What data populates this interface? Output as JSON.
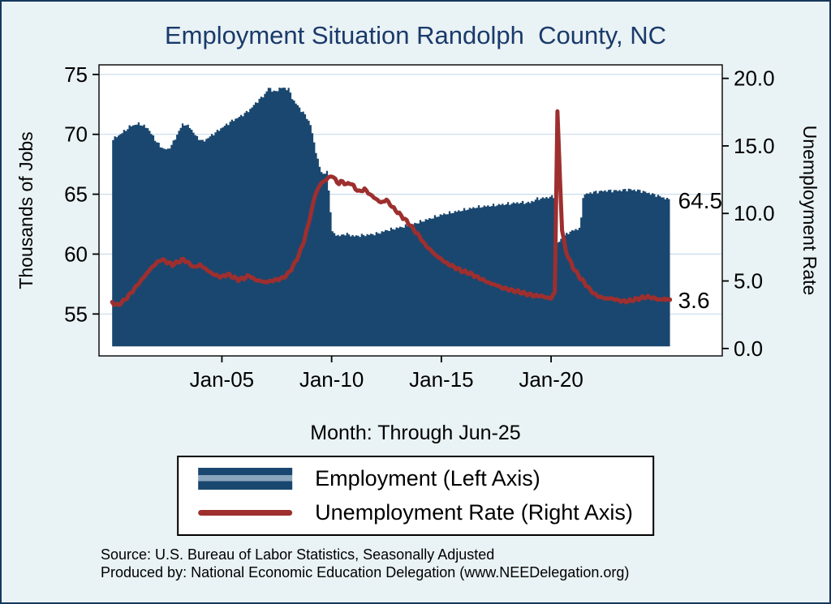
{
  "page": {
    "background_color": "#e9f2f4",
    "border_color": "#16365c",
    "title_color": "#1a3a6b"
  },
  "footnotes": {
    "source": "Source: U.S. Bureau of Labor Statistics, Seasonally Adjusted",
    "produced": "Produced by: National Economic Education Delegation (www.NEEDelegation.org)"
  },
  "chart_data": {
    "type": "area+line",
    "title": "Employment Situation Randolph  County, NC",
    "x_label": "Month: Through Jun-25",
    "x_domain": [
      1999.4,
      2027.8
    ],
    "x_ticks": [
      {
        "label": "Jan-05",
        "year": 2005
      },
      {
        "label": "Jan-10",
        "year": 2010
      },
      {
        "label": "Jan-15",
        "year": 2015
      },
      {
        "label": "Jan-20",
        "year": 2020
      }
    ],
    "left_axis": {
      "label": "Thousands of Jobs",
      "range": [
        51.5,
        75.8
      ],
      "ticks": [
        55,
        60,
        65,
        70,
        75
      ]
    },
    "right_axis": {
      "label": "Unemployment Rate",
      "range": [
        -0.55,
        21.0
      ],
      "ticks": [
        0,
        5,
        10,
        15,
        20
      ],
      "tick_labels": [
        "0.0",
        "5.0",
        "10.0",
        "15.0",
        "20.0"
      ]
    },
    "grid": true,
    "colors": {
      "grid": "#c9dcec",
      "axis": "#000000",
      "plot_background": "#ffffff"
    },
    "series": [
      {
        "name": "Employment (Left Axis)",
        "type": "area",
        "axis": "left",
        "color": "#1a476f",
        "baseline": 52.3,
        "points": [
          [
            2000.0,
            69.6
          ],
          [
            2000.4,
            70.1
          ],
          [
            2000.8,
            70.7
          ],
          [
            2001.2,
            70.9
          ],
          [
            2001.6,
            70.5
          ],
          [
            2001.9,
            69.6
          ],
          [
            2002.2,
            68.9
          ],
          [
            2002.5,
            68.7
          ],
          [
            2002.8,
            69.5
          ],
          [
            2003.0,
            70.3
          ],
          [
            2003.2,
            70.9
          ],
          [
            2003.5,
            70.6
          ],
          [
            2003.8,
            69.8
          ],
          [
            2004.1,
            69.4
          ],
          [
            2004.4,
            69.8
          ],
          [
            2004.7,
            70.2
          ],
          [
            2005.0,
            70.6
          ],
          [
            2005.4,
            71.1
          ],
          [
            2005.8,
            71.5
          ],
          [
            2006.2,
            72.0
          ],
          [
            2006.6,
            72.8
          ],
          [
            2006.9,
            73.3
          ],
          [
            2007.1,
            73.9
          ],
          [
            2007.4,
            73.5
          ],
          [
            2007.6,
            73.9
          ],
          [
            2008.0,
            73.8
          ],
          [
            2008.2,
            72.9
          ],
          [
            2008.5,
            72.2
          ],
          [
            2008.8,
            71.5
          ],
          [
            2009.0,
            70.8
          ],
          [
            2009.2,
            69.0
          ],
          [
            2009.4,
            67.3
          ],
          [
            2009.6,
            66.6
          ],
          [
            2009.75,
            66.9
          ],
          [
            2009.9,
            64.0
          ],
          [
            2010.0,
            61.8
          ],
          [
            2010.3,
            61.5
          ],
          [
            2010.6,
            61.7
          ],
          [
            2011.0,
            61.5
          ],
          [
            2011.5,
            61.6
          ],
          [
            2012.0,
            61.7
          ],
          [
            2012.5,
            62.0
          ],
          [
            2013.0,
            62.2
          ],
          [
            2013.5,
            62.4
          ],
          [
            2014.0,
            62.7
          ],
          [
            2014.5,
            63.0
          ],
          [
            2015.0,
            63.3
          ],
          [
            2015.5,
            63.5
          ],
          [
            2016.0,
            63.7
          ],
          [
            2016.5,
            63.9
          ],
          [
            2017.0,
            64.0
          ],
          [
            2017.5,
            64.1
          ],
          [
            2018.0,
            64.2
          ],
          [
            2018.5,
            64.3
          ],
          [
            2019.0,
            64.3
          ],
          [
            2019.3,
            64.6
          ],
          [
            2019.7,
            64.7
          ],
          [
            2020.0,
            64.8
          ],
          [
            2020.17,
            64.8
          ],
          [
            2020.25,
            60.9
          ],
          [
            2020.5,
            61.4
          ],
          [
            2020.75,
            61.8
          ],
          [
            2021.0,
            62.0
          ],
          [
            2021.3,
            62.2
          ],
          [
            2021.42,
            64.9
          ],
          [
            2021.7,
            65.1
          ],
          [
            2022.0,
            65.2
          ],
          [
            2022.5,
            65.3
          ],
          [
            2023.0,
            65.3
          ],
          [
            2023.5,
            65.4
          ],
          [
            2024.0,
            65.3
          ],
          [
            2024.4,
            65.1
          ],
          [
            2024.8,
            64.9
          ],
          [
            2025.1,
            64.7
          ],
          [
            2025.417,
            64.5
          ]
        ]
      },
      {
        "name": "Unemployment Rate (Right Axis)",
        "type": "line",
        "axis": "right",
        "color": "#9e2f2f",
        "width": 5,
        "points": [
          [
            2000.0,
            3.4
          ],
          [
            2000.25,
            3.2
          ],
          [
            2000.5,
            3.5
          ],
          [
            2000.75,
            3.9
          ],
          [
            2001.0,
            4.4
          ],
          [
            2001.25,
            4.9
          ],
          [
            2001.5,
            5.4
          ],
          [
            2001.75,
            5.9
          ],
          [
            2002.0,
            6.3
          ],
          [
            2002.25,
            6.6
          ],
          [
            2002.5,
            6.4
          ],
          [
            2002.75,
            6.2
          ],
          [
            2003.0,
            6.4
          ],
          [
            2003.25,
            6.6
          ],
          [
            2003.5,
            6.3
          ],
          [
            2003.75,
            6.0
          ],
          [
            2004.0,
            6.2
          ],
          [
            2004.25,
            5.9
          ],
          [
            2004.5,
            5.6
          ],
          [
            2004.75,
            5.4
          ],
          [
            2005.0,
            5.3
          ],
          [
            2005.25,
            5.5
          ],
          [
            2005.5,
            5.3
          ],
          [
            2005.75,
            5.1
          ],
          [
            2006.0,
            5.2
          ],
          [
            2006.25,
            5.4
          ],
          [
            2006.5,
            5.1
          ],
          [
            2006.75,
            5.0
          ],
          [
            2007.0,
            4.9
          ],
          [
            2007.25,
            5.0
          ],
          [
            2007.5,
            5.1
          ],
          [
            2007.75,
            5.2
          ],
          [
            2008.0,
            5.5
          ],
          [
            2008.25,
            6.1
          ],
          [
            2008.5,
            6.9
          ],
          [
            2008.75,
            8.0
          ],
          [
            2009.0,
            9.6
          ],
          [
            2009.25,
            11.4
          ],
          [
            2009.5,
            12.2
          ],
          [
            2009.75,
            12.5
          ],
          [
            2010.0,
            12.8
          ],
          [
            2010.17,
            12.5
          ],
          [
            2010.33,
            12.2
          ],
          [
            2010.5,
            12.4
          ],
          [
            2010.67,
            12.1
          ],
          [
            2010.83,
            12.3
          ],
          [
            2011.0,
            12.0
          ],
          [
            2011.25,
            11.6
          ],
          [
            2011.5,
            11.8
          ],
          [
            2011.75,
            11.4
          ],
          [
            2012.0,
            11.1
          ],
          [
            2012.25,
            10.8
          ],
          [
            2012.5,
            11.0
          ],
          [
            2012.75,
            10.5
          ],
          [
            2013.0,
            10.1
          ],
          [
            2013.25,
            9.7
          ],
          [
            2013.5,
            9.3
          ],
          [
            2013.75,
            8.8
          ],
          [
            2014.0,
            8.3
          ],
          [
            2014.25,
            7.7
          ],
          [
            2014.5,
            7.3
          ],
          [
            2014.75,
            6.9
          ],
          [
            2015.0,
            6.6
          ],
          [
            2015.25,
            6.3
          ],
          [
            2015.5,
            6.1
          ],
          [
            2015.75,
            5.9
          ],
          [
            2016.0,
            5.7
          ],
          [
            2016.25,
            5.6
          ],
          [
            2016.5,
            5.4
          ],
          [
            2016.75,
            5.2
          ],
          [
            2017.0,
            5.0
          ],
          [
            2017.25,
            4.8
          ],
          [
            2017.5,
            4.7
          ],
          [
            2017.75,
            4.5
          ],
          [
            2018.0,
            4.4
          ],
          [
            2018.25,
            4.3
          ],
          [
            2018.5,
            4.2
          ],
          [
            2018.75,
            4.1
          ],
          [
            2019.0,
            4.0
          ],
          [
            2019.25,
            3.9
          ],
          [
            2019.5,
            3.9
          ],
          [
            2019.75,
            3.8
          ],
          [
            2020.0,
            3.7
          ],
          [
            2020.17,
            4.2
          ],
          [
            2020.29,
            17.5
          ],
          [
            2020.42,
            12.0
          ],
          [
            2020.5,
            8.8
          ],
          [
            2020.67,
            7.2
          ],
          [
            2020.83,
            6.6
          ],
          [
            2021.0,
            6.0
          ],
          [
            2021.25,
            5.4
          ],
          [
            2021.5,
            4.9
          ],
          [
            2021.75,
            4.4
          ],
          [
            2022.0,
            4.0
          ],
          [
            2022.25,
            3.8
          ],
          [
            2022.5,
            3.7
          ],
          [
            2022.75,
            3.7
          ],
          [
            2023.0,
            3.6
          ],
          [
            2023.25,
            3.5
          ],
          [
            2023.5,
            3.5
          ],
          [
            2023.75,
            3.6
          ],
          [
            2024.0,
            3.7
          ],
          [
            2024.25,
            3.8
          ],
          [
            2024.5,
            3.8
          ],
          [
            2024.75,
            3.7
          ],
          [
            2025.0,
            3.6
          ],
          [
            2025.2,
            3.7
          ],
          [
            2025.417,
            3.6
          ]
        ]
      }
    ],
    "annotations": [
      {
        "text": "64.5",
        "axis": "left",
        "value": 64.5
      },
      {
        "text": "3.6",
        "axis": "right",
        "value": 3.6
      }
    ],
    "legend": {
      "position": "bottom",
      "entries": [
        {
          "label": "Employment (Left Axis)",
          "swatch": "area",
          "color": "#1a476f",
          "stripe": "#8aa6bc"
        },
        {
          "label": "Unemployment Rate (Right Axis)",
          "swatch": "line",
          "color": "#9e2f2f"
        }
      ]
    }
  }
}
